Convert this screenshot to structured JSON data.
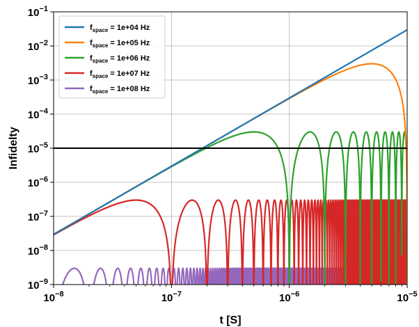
{
  "chart_data": {
    "type": "line",
    "xlabel": "t [S]",
    "ylabel": "Infidelty",
    "xscale": "log",
    "yscale": "log",
    "xlim": [
      1e-08,
      1e-05
    ],
    "ylim": [
      1e-09,
      0.1
    ],
    "x_ticks": [
      {
        "value": 1e-08,
        "base": "10",
        "exp": "−8"
      },
      {
        "value": 1e-07,
        "base": "10",
        "exp": "−7"
      },
      {
        "value": 1e-06,
        "base": "10",
        "exp": "−6"
      },
      {
        "value": 1e-05,
        "base": "10",
        "exp": "−5"
      }
    ],
    "y_ticks": [
      {
        "value": 1e-09,
        "base": "10",
        "exp": "−9"
      },
      {
        "value": 1e-08,
        "base": "10",
        "exp": "−8"
      },
      {
        "value": 1e-07,
        "base": "10",
        "exp": "−7"
      },
      {
        "value": 1e-06,
        "base": "10",
        "exp": "−6"
      },
      {
        "value": 1e-05,
        "base": "10",
        "exp": "−5"
      },
      {
        "value": 0.0001,
        "base": "10",
        "exp": "−4"
      },
      {
        "value": 0.001,
        "base": "10",
        "exp": "−3"
      },
      {
        "value": 0.01,
        "base": "10",
        "exp": "−2"
      },
      {
        "value": 0.1,
        "base": "10",
        "exp": "−1"
      }
    ],
    "grid": true,
    "legend_position": "top-left",
    "threshold": {
      "y": 1e-05,
      "color": "#000000"
    },
    "series": [
      {
        "legend_prefix": "f",
        "legend_sub": "space",
        "legend_suffix": " = 1e+04 Hz",
        "f_space": 10000.0,
        "color": "#1f77b4",
        "peak": 0.003
      },
      {
        "legend_prefix": "f",
        "legend_sub": "space",
        "legend_suffix": " = 1e+05 Hz",
        "f_space": 100000.0,
        "color": "#ff7f0e",
        "peak": 0.003
      },
      {
        "legend_prefix": "f",
        "legend_sub": "space",
        "legend_suffix": " = 1e+06 Hz",
        "f_space": 1000000.0,
        "color": "#2ca02c",
        "peak": 3e-05
      },
      {
        "legend_prefix": "f",
        "legend_sub": "space",
        "legend_suffix": " = 1e+07 Hz",
        "f_space": 10000000.0,
        "color": "#d62728",
        "peak": 3e-07
      },
      {
        "legend_prefix": "f",
        "legend_sub": "space",
        "legend_suffix": " = 1e+08 Hz",
        "f_space": 100000000.0,
        "color": "#9467bd",
        "peak": 3e-09
      }
    ]
  }
}
